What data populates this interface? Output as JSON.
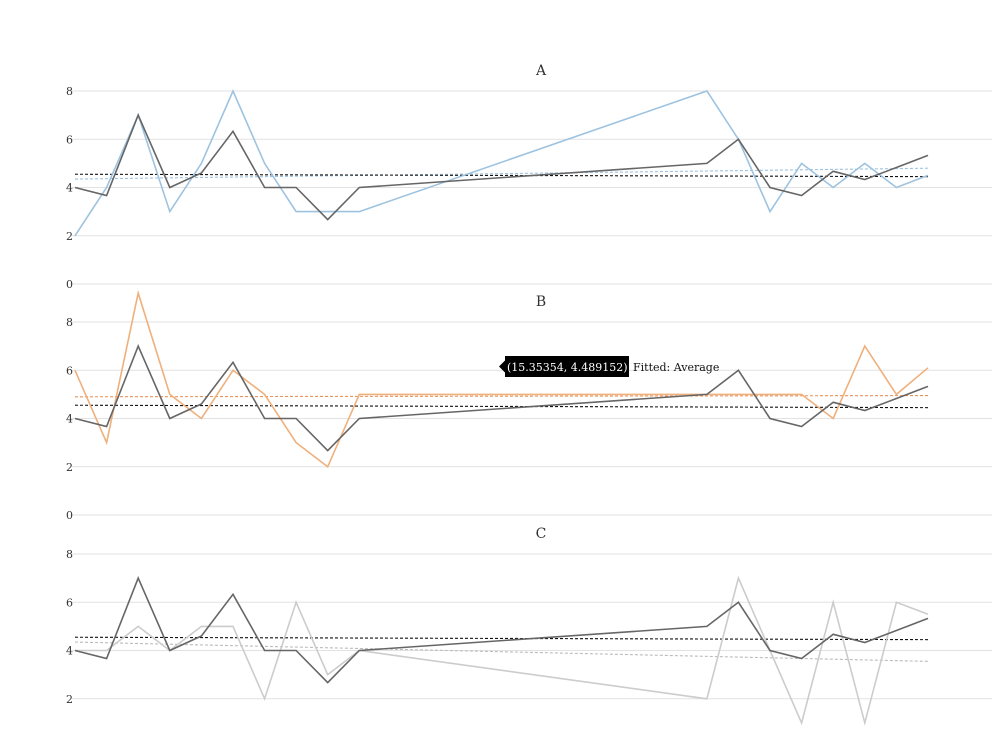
{
  "chart_data": [
    {
      "type": "line",
      "title": "A",
      "ylim": [
        0,
        8
      ],
      "yticks": [
        0,
        2,
        4,
        6,
        8
      ],
      "x": [
        0,
        1,
        2,
        3,
        4,
        5,
        6,
        7,
        8,
        9,
        20,
        21,
        22,
        23,
        24,
        25,
        26,
        27
      ],
      "series": [
        {
          "values": [
            2,
            4,
            7,
            3,
            5,
            8,
            5,
            3,
            3,
            3,
            8,
            6,
            3,
            5,
            4,
            5,
            4,
            4.5
          ],
          "color": "#9ec3e0"
        },
        {
          "values": [
            4,
            3.67,
            7,
            4,
            4.6,
            6.33,
            4,
            4,
            2.67,
            4,
            5,
            6,
            4,
            3.67,
            4.67,
            4.33,
            4.83,
            5.33
          ],
          "color": "#666666"
        }
      ],
      "fitted": [
        {
          "values": [
            4.35,
            4.8
          ],
          "color": "#9ec3e0"
        },
        {
          "values": [
            4.55,
            4.45
          ],
          "color": "#111111"
        }
      ]
    },
    {
      "type": "line",
      "title": "B",
      "ylim": [
        0,
        8
      ],
      "yticks": [
        0,
        2,
        4,
        6,
        8
      ],
      "x": [
        0,
        1,
        2,
        3,
        4,
        5,
        6,
        7,
        8,
        9,
        20,
        21,
        22,
        23,
        24,
        25,
        26,
        27
      ],
      "series": [
        {
          "values": [
            6,
            3,
            9.2,
            5,
            4,
            6,
            5,
            3,
            2,
            5,
            5,
            5,
            5,
            5,
            4,
            7,
            5,
            6.1
          ],
          "color": "#f0b07c"
        },
        {
          "values": [
            4,
            3.67,
            7,
            4,
            4.6,
            6.33,
            4,
            4,
            2.67,
            4,
            5,
            6,
            4,
            3.67,
            4.67,
            4.33,
            4.83,
            5.33
          ],
          "color": "#666666"
        }
      ],
      "fitted": [
        {
          "values": [
            4.9,
            4.95
          ],
          "color": "#e8935a"
        },
        {
          "values": [
            4.55,
            4.45
          ],
          "color": "#111111"
        }
      ],
      "tooltip": {
        "x": 15.35354,
        "y": 4.489152,
        "text": "(15.35354, 4.489152)",
        "label": "Fitted: Average"
      }
    },
    {
      "type": "line",
      "title": "C",
      "ylim": [
        0,
        8
      ],
      "yticks": [
        2,
        4,
        6,
        8
      ],
      "x": [
        0,
        1,
        2,
        3,
        4,
        5,
        6,
        7,
        8,
        9,
        20,
        21,
        22,
        23,
        24,
        25,
        26,
        27
      ],
      "series": [
        {
          "values": [
            4,
            4,
            5,
            4,
            5,
            5,
            2,
            6,
            3,
            4,
            2,
            7,
            4,
            1,
            6,
            1,
            6,
            5.5
          ],
          "color": "#cccccc"
        },
        {
          "values": [
            4,
            3.67,
            7,
            4,
            4.6,
            6.33,
            4,
            4,
            2.67,
            4,
            5,
            6,
            4,
            3.67,
            4.67,
            4.33,
            4.83,
            5.33
          ],
          "color": "#666666"
        }
      ],
      "fitted": [
        {
          "values": [
            4.35,
            3.55
          ],
          "color": "#bbbbbb"
        },
        {
          "values": [
            4.55,
            4.45
          ],
          "color": "#111111"
        }
      ]
    }
  ]
}
